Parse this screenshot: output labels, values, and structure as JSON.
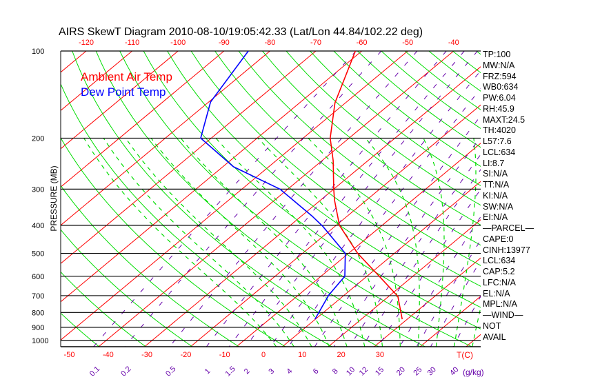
{
  "chart_data": {
    "type": "line",
    "title": "AIRS SkewT Diagram 2010-08-10/19:05:42.33 (Lat/Lon 44.84/102.22 deg)",
    "ylabel": "PRESSURE (MB)",
    "xlabel": "T(C)",
    "mixing_ratio_unit": "(g/kg)",
    "pressure_range": [
      100,
      1050
    ],
    "pressure_ticks": [
      100,
      200,
      300,
      400,
      500,
      600,
      700,
      800,
      900,
      1000
    ],
    "top_temp_ticks": [
      -120,
      -110,
      -100,
      -90,
      -80,
      -70,
      -60,
      -50,
      -40
    ],
    "bottom_temp_ticks": [
      -50,
      -40,
      -30,
      -20,
      -10,
      0,
      10,
      20,
      30
    ],
    "mixing_ratio_ticks": [
      "0.1",
      "0.2",
      "0.5",
      "1",
      "1.5",
      "2",
      "3",
      "4",
      "6",
      "8",
      "10",
      "12",
      "15",
      "20",
      "25",
      "30",
      "40"
    ],
    "legend": [
      {
        "label": "Ambient Air Temp",
        "color": "#ff0000"
      },
      {
        "label": "Dew Point Temp",
        "color": "#0000ff"
      }
    ],
    "series": [
      {
        "name": "Ambient Air Temp",
        "color": "#ff0000",
        "points": [
          [
            100,
            -61.4
          ],
          [
            115,
            -58.3
          ],
          [
            151,
            -52.3
          ],
          [
            200,
            -44.1
          ],
          [
            239,
            -37.6
          ],
          [
            300,
            -30.0
          ],
          [
            327,
            -27.0
          ],
          [
            400,
            -19.3
          ],
          [
            500,
            -8.0
          ],
          [
            600,
            2.7
          ],
          [
            704,
            12.0
          ],
          [
            844,
            18.9
          ]
        ]
      },
      {
        "name": "Dew Point Temp",
        "color": "#0000ff",
        "points": [
          [
            100,
            -84.7
          ],
          [
            150,
            -79.6
          ],
          [
            200,
            -72.3
          ],
          [
            251,
            -57.7
          ],
          [
            300,
            -41.7
          ],
          [
            371,
            -27.8
          ],
          [
            403,
            -22.7
          ],
          [
            500,
            -10.7
          ],
          [
            600,
            -4.8
          ],
          [
            696,
            -3.4
          ],
          [
            844,
            -0.1
          ]
        ]
      }
    ],
    "colors": {
      "isotherm": "#ff0000",
      "dry_adiabat": "#00dd00",
      "moist_adiabat": "#00dd00",
      "mixing_ratio": "#6600aa",
      "isobar": "#000000"
    }
  },
  "panel": [
    "TP:100",
    "MW:N/A",
    "FRZ:594",
    "WB0:634",
    "PW:6.04",
    "RH:45.9",
    "MAXT:24.5",
    "TH:4020",
    "L57:7.6",
    "LCL:634",
    "LI:8.7",
    "SI:N/A",
    "TT:N/A",
    "KI:N/A",
    "SW:N/A",
    "EI:N/A",
    "—PARCEL—",
    "CAPE:0",
    "CINH:13977",
    "LCL:634",
    "CAP:5.2",
    "LFC:N/A",
    "EL:N/A",
    "MPL:N/A",
    "—WIND—",
    "NOT",
    "AVAIL"
  ]
}
